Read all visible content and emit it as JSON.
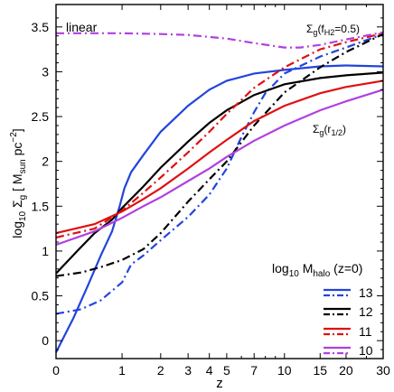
{
  "chart_data": {
    "type": "line",
    "xlabel": "z",
    "ylabel_main": "log",
    "ylabel_sub": "10",
    "ylabel_rest": " Σ",
    "ylabel_sub2": "g",
    "ylabel_units_pre": " [ M",
    "ylabel_units_sub": "sun",
    "ylabel_units_mid": " pc",
    "ylabel_units_sup": "−2",
    "ylabel_units_post": "]",
    "x_ticks": [
      {
        "label": "0",
        "z": 0
      },
      {
        "label": "1",
        "z": 1
      },
      {
        "label": "2",
        "z": 2
      },
      {
        "label": "3",
        "z": 3
      },
      {
        "label": "4",
        "z": 4
      },
      {
        "label": "5",
        "z": 5
      },
      {
        "label": "7",
        "z": 7
      },
      {
        "label": "10",
        "z": 10
      },
      {
        "label": "15",
        "z": 15
      },
      {
        "label": "20",
        "z": 20
      },
      {
        "label": "30",
        "z": 30
      }
    ],
    "x_minor_ticks": [
      6,
      8,
      9,
      25
    ],
    "y_ticks": [
      "0",
      "0.5",
      "1",
      "1.5",
      "2",
      "2.5",
      "3",
      "3.5"
    ],
    "ylim": [
      -0.2,
      3.75
    ],
    "xlim": [
      0,
      30
    ],
    "x_scale": "log(1+z)",
    "annotations": {
      "corner": "linear",
      "fh2_main": "Σ",
      "fh2_sub": "g",
      "fh2_paren": "(f",
      "fh2_sub2": "H2",
      "fh2_tail": "=0.5)",
      "rhalf_main": "Σ",
      "rhalf_sub": "g",
      "rhalf_paren": "(r",
      "rhalf_sub2": "1/2",
      "rhalf_tail": ")"
    },
    "legend": {
      "title_main": "log",
      "title_sub": "10",
      "title_m": " M",
      "title_sub2": "halo",
      "title_tail": " (z=0)",
      "entries": [
        {
          "label": "13",
          "color": "#2244dd"
        },
        {
          "label": "12",
          "color": "#000000"
        },
        {
          "label": "11",
          "color": "#e01010"
        },
        {
          "label": "10",
          "color": "#b040e0"
        }
      ]
    },
    "series": [
      {
        "name": "13",
        "style": "solid",
        "color": "#2244dd",
        "points": [
          [
            0,
            -0.13
          ],
          [
            0.2,
            0.25
          ],
          [
            0.4,
            0.62
          ],
          [
            0.6,
            0.95
          ],
          [
            0.8,
            1.22
          ],
          [
            0.95,
            1.5
          ],
          [
            1.05,
            1.7
          ],
          [
            1.2,
            1.88
          ],
          [
            1.5,
            2.07
          ],
          [
            2,
            2.33
          ],
          [
            3,
            2.62
          ],
          [
            4,
            2.8
          ],
          [
            5,
            2.9
          ],
          [
            7,
            2.98
          ],
          [
            10,
            3.02
          ],
          [
            15,
            3.06
          ],
          [
            20,
            3.07
          ],
          [
            30,
            3.06
          ]
        ]
      },
      {
        "name": "13",
        "style": "dashdot",
        "color": "#2244dd",
        "points": [
          [
            0,
            0.3
          ],
          [
            0.3,
            0.35
          ],
          [
            0.6,
            0.45
          ],
          [
            1,
            0.65
          ],
          [
            1.2,
            0.85
          ],
          [
            1.5,
            0.95
          ],
          [
            2,
            1.12
          ],
          [
            3,
            1.38
          ],
          [
            4,
            1.63
          ],
          [
            5,
            1.92
          ],
          [
            6,
            2.27
          ],
          [
            7,
            2.55
          ],
          [
            8,
            2.76
          ],
          [
            10,
            2.98
          ],
          [
            15,
            3.17
          ],
          [
            20,
            3.27
          ],
          [
            30,
            3.42
          ]
        ]
      },
      {
        "name": "12",
        "style": "solid",
        "color": "#000000",
        "points": [
          [
            0,
            0.75
          ],
          [
            0.25,
            1.0
          ],
          [
            0.5,
            1.2
          ],
          [
            0.8,
            1.35
          ],
          [
            1,
            1.48
          ],
          [
            1.5,
            1.72
          ],
          [
            2,
            1.93
          ],
          [
            3,
            2.22
          ],
          [
            4,
            2.43
          ],
          [
            5,
            2.57
          ],
          [
            7,
            2.74
          ],
          [
            10,
            2.86
          ],
          [
            15,
            2.93
          ],
          [
            20,
            2.96
          ],
          [
            30,
            2.99
          ]
        ]
      },
      {
        "name": "12",
        "style": "dashdot",
        "color": "#000000",
        "points": [
          [
            0,
            0.72
          ],
          [
            0.3,
            0.76
          ],
          [
            0.6,
            0.82
          ],
          [
            1,
            0.9
          ],
          [
            1.5,
            1.02
          ],
          [
            2,
            1.2
          ],
          [
            3,
            1.55
          ],
          [
            4,
            1.8
          ],
          [
            5,
            2.0
          ],
          [
            7,
            2.4
          ],
          [
            10,
            2.77
          ],
          [
            15,
            3.05
          ],
          [
            20,
            3.22
          ],
          [
            30,
            3.42
          ]
        ]
      },
      {
        "name": "11",
        "style": "solid",
        "color": "#e01010",
        "points": [
          [
            0,
            1.2
          ],
          [
            0.5,
            1.3
          ],
          [
            1,
            1.44
          ],
          [
            1.5,
            1.58
          ],
          [
            2,
            1.7
          ],
          [
            3,
            1.92
          ],
          [
            4,
            2.1
          ],
          [
            5,
            2.24
          ],
          [
            7,
            2.45
          ],
          [
            10,
            2.62
          ],
          [
            15,
            2.76
          ],
          [
            20,
            2.83
          ],
          [
            30,
            2.9
          ]
        ]
      },
      {
        "name": "11",
        "style": "dashdot",
        "color": "#e01010",
        "points": [
          [
            0,
            1.15
          ],
          [
            0.5,
            1.25
          ],
          [
            1,
            1.45
          ],
          [
            1.5,
            1.65
          ],
          [
            2,
            1.82
          ],
          [
            3,
            2.1
          ],
          [
            4,
            2.33
          ],
          [
            5,
            2.53
          ],
          [
            7,
            2.82
          ],
          [
            10,
            3.05
          ],
          [
            15,
            3.25
          ],
          [
            20,
            3.33
          ],
          [
            30,
            3.43
          ]
        ]
      },
      {
        "name": "10",
        "style": "solid",
        "color": "#b040e0",
        "points": [
          [
            0,
            1.07
          ],
          [
            0.5,
            1.22
          ],
          [
            1,
            1.37
          ],
          [
            1.5,
            1.5
          ],
          [
            2,
            1.6
          ],
          [
            3,
            1.78
          ],
          [
            4,
            1.92
          ],
          [
            5,
            2.05
          ],
          [
            7,
            2.23
          ],
          [
            10,
            2.4
          ],
          [
            15,
            2.57
          ],
          [
            20,
            2.67
          ],
          [
            30,
            2.8
          ]
        ]
      },
      {
        "name": "10",
        "style": "dashdot",
        "color": "#b040e0",
        "points": [
          [
            0,
            3.43
          ],
          [
            1,
            3.43
          ],
          [
            2,
            3.42
          ],
          [
            3,
            3.41
          ],
          [
            5,
            3.37
          ],
          [
            7,
            3.32
          ],
          [
            10,
            3.27
          ],
          [
            12,
            3.27
          ],
          [
            15,
            3.3
          ],
          [
            20,
            3.36
          ],
          [
            30,
            3.44
          ]
        ]
      }
    ]
  }
}
